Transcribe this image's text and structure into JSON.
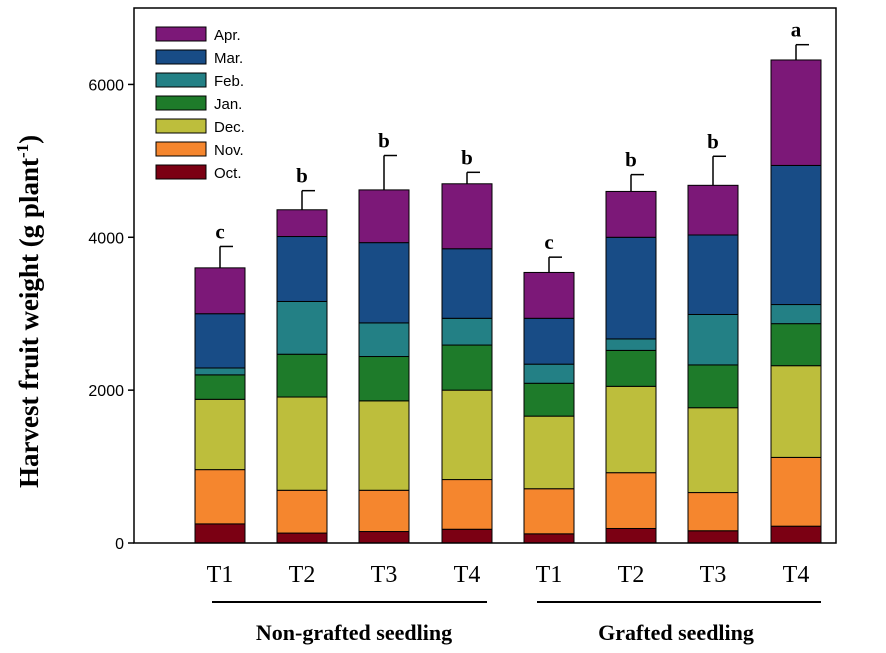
{
  "chart_data": {
    "type": "stacked-bar",
    "title": "",
    "ylabel": "Harvest fruit weight (g plant",
    "ylabel_sup": "-1",
    "ylabel_close": ")",
    "ylim": [
      0,
      7000
    ],
    "yticks": [
      0,
      2000,
      4000,
      6000
    ],
    "grid": false,
    "legend_position": "top-left",
    "groups": [
      {
        "label": "Non-grafted seedling",
        "categories": [
          "T1",
          "T2",
          "T3",
          "T4"
        ]
      },
      {
        "label": "Grafted seedling",
        "categories": [
          "T1",
          "T2",
          "T3",
          "T4"
        ]
      }
    ],
    "categories": [
      "T1",
      "T2",
      "T3",
      "T4",
      "T1",
      "T2",
      "T3",
      "T4"
    ],
    "series": [
      {
        "name": "Oct.",
        "color": "#7b0013",
        "values": [
          250,
          130,
          150,
          180,
          120,
          190,
          160,
          220
        ]
      },
      {
        "name": "Nov.",
        "color": "#f5862e",
        "values": [
          710,
          560,
          540,
          650,
          590,
          730,
          500,
          900
        ]
      },
      {
        "name": "Dec.",
        "color": "#bdbe3c",
        "values": [
          920,
          1220,
          1170,
          1170,
          950,
          1130,
          1110,
          1200
        ]
      },
      {
        "name": "Jan.",
        "color": "#1e7b2a",
        "values": [
          320,
          560,
          580,
          590,
          430,
          470,
          560,
          550
        ]
      },
      {
        "name": "Feb.",
        "color": "#238085",
        "values": [
          90,
          690,
          440,
          350,
          250,
          150,
          660,
          250
        ]
      },
      {
        "name": "Mar.",
        "color": "#184c86",
        "values": [
          710,
          850,
          1050,
          910,
          600,
          1330,
          1040,
          1820
        ]
      },
      {
        "name": "Apr.",
        "color": "#7c1878",
        "values": [
          600,
          350,
          690,
          850,
          600,
          600,
          650,
          1380
        ]
      }
    ],
    "error_bars": [
      280,
      250,
      450,
      150,
      200,
      220,
      380,
      200
    ],
    "significance": [
      "c",
      "b",
      "b",
      "b",
      "c",
      "b",
      "b",
      "a"
    ]
  }
}
